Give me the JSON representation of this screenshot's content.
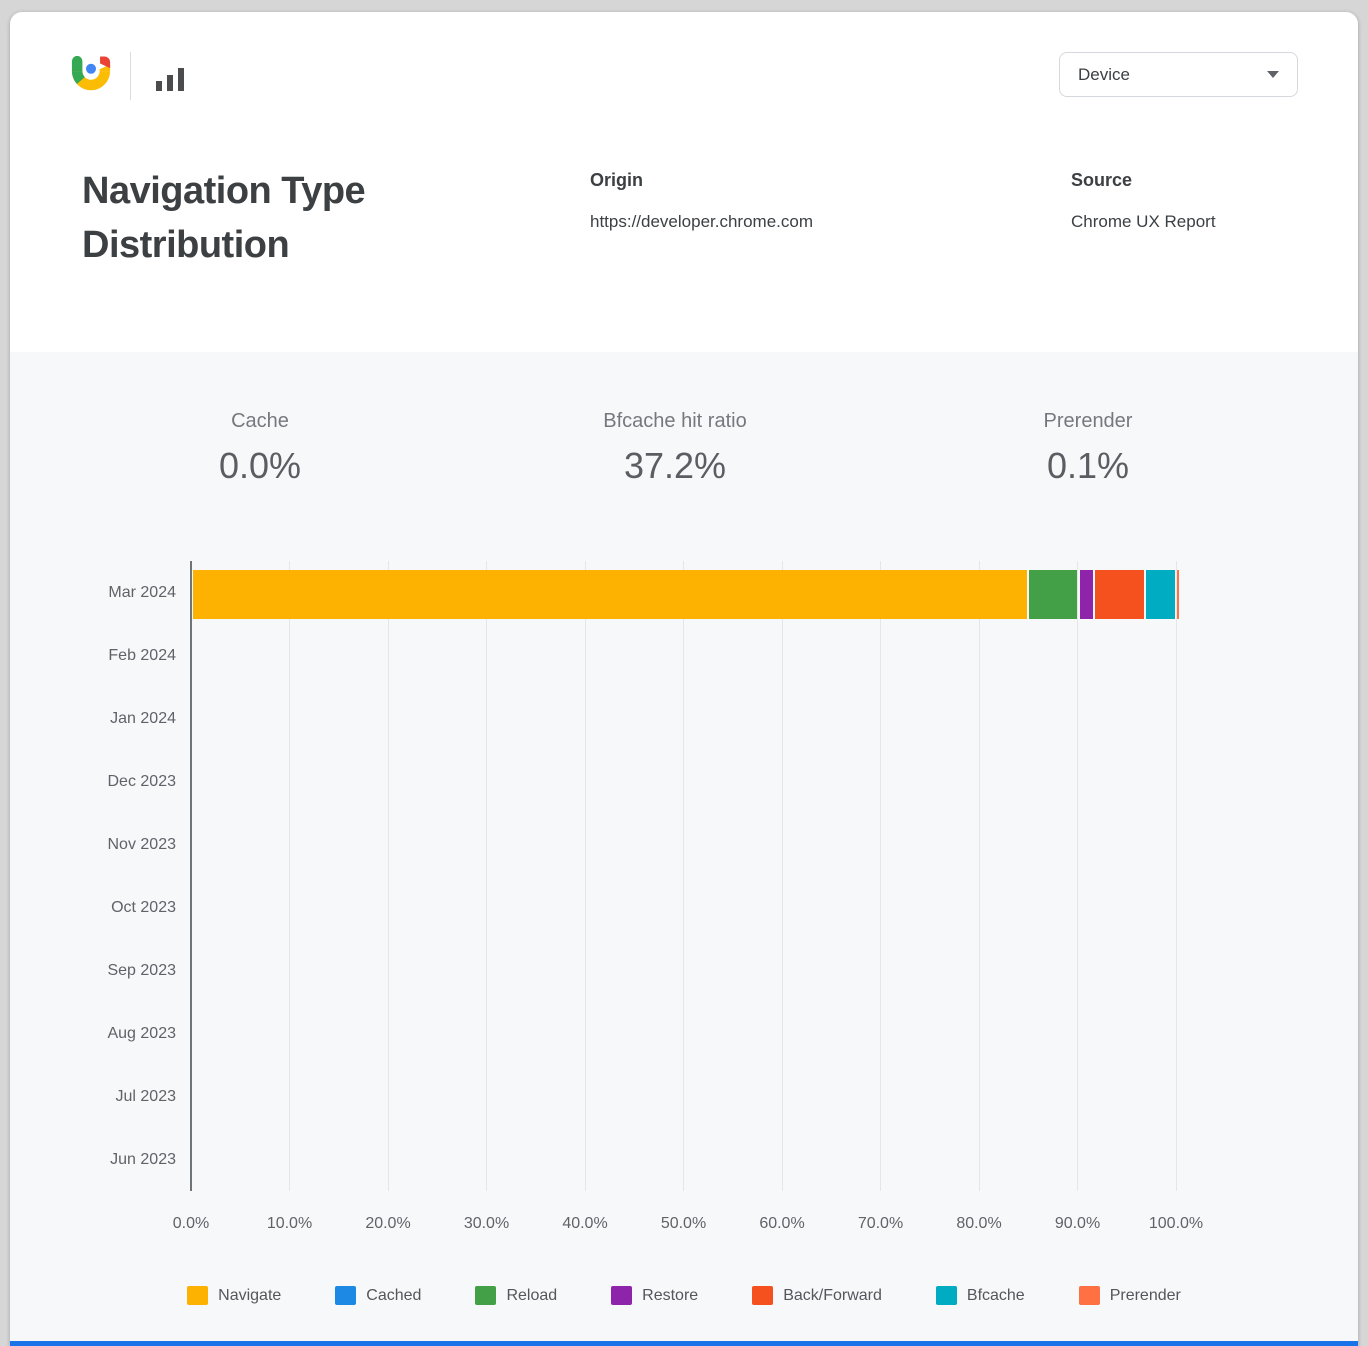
{
  "header": {
    "title": "Navigation Type Distribution",
    "logo": "crux-logo",
    "toolbar_icon": "bar-chart-icon",
    "device_dropdown": {
      "value": "Device"
    },
    "origin_label": "Origin",
    "origin_value": "https://developer.chrome.com",
    "source_label": "Source",
    "source_value": "Chrome UX Report"
  },
  "stats": [
    {
      "label": "Cache",
      "value": "0.0%"
    },
    {
      "label": "Bfcache hit ratio",
      "value": "37.2%"
    },
    {
      "label": "Prerender",
      "value": "0.1%"
    }
  ],
  "chart_data": {
    "type": "bar",
    "orientation": "horizontal-stacked",
    "title": "Navigation Type Distribution",
    "categories": [
      "Mar 2024",
      "Feb 2024",
      "Jan 2024",
      "Dec 2023",
      "Nov 2023",
      "Oct 2023",
      "Sep 2023",
      "Aug 2023",
      "Jul 2023",
      "Jun 2023"
    ],
    "series": [
      {
        "name": "Navigate",
        "color": "#FDB201",
        "values": [
          84.9,
          0,
          0,
          0,
          0,
          0,
          0,
          0,
          0,
          0
        ]
      },
      {
        "name": "Cached",
        "color": "#1E88E5",
        "values": [
          0,
          0,
          0,
          0,
          0,
          0,
          0,
          0,
          0,
          0
        ]
      },
      {
        "name": "Reload",
        "color": "#43A047",
        "values": [
          5.1,
          0,
          0,
          0,
          0,
          0,
          0,
          0,
          0,
          0
        ]
      },
      {
        "name": "Restore",
        "color": "#8E24AA",
        "values": [
          1.6,
          0,
          0,
          0,
          0,
          0,
          0,
          0,
          0,
          0
        ]
      },
      {
        "name": "Back/Forward",
        "color": "#F4511E",
        "values": [
          5.2,
          0,
          0,
          0,
          0,
          0,
          0,
          0,
          0,
          0
        ]
      },
      {
        "name": "Bfcache",
        "color": "#00ACC1",
        "values": [
          3.1,
          0,
          0,
          0,
          0,
          0,
          0,
          0,
          0,
          0
        ]
      },
      {
        "name": "Prerender",
        "color": "#FF7043",
        "values": [
          0.1,
          0,
          0,
          0,
          0,
          0,
          0,
          0,
          0,
          0
        ]
      }
    ],
    "x_ticks": [
      "0.0%",
      "10.0%",
      "20.0%",
      "30.0%",
      "40.0%",
      "50.0%",
      "60.0%",
      "70.0%",
      "80.0%",
      "90.0%",
      "100.0%"
    ],
    "xlim": [
      0,
      100
    ],
    "grid": true,
    "legend_position": "bottom",
    "accent_color": "#1a73e8"
  }
}
